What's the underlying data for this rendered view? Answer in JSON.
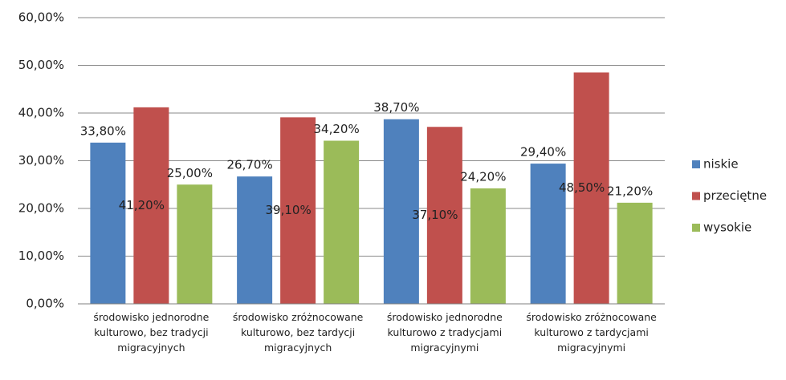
{
  "chart_data": {
    "type": "bar",
    "categories": [
      "środowisko jednorodne kulturowo, bez tradycji migracyjnych",
      "środowisko zróżnocowane kulturowo, bez tardycji migracyjnych",
      "środowisko jednorodne kulturowo z tradycjami migracyjnymi",
      "środowisko zróżnocowane kulturowo z tardycjami migracyjnymi"
    ],
    "series": [
      {
        "name": "niskie",
        "color": "#4f81bd",
        "values": [
          33.8,
          26.7,
          38.7,
          29.4
        ],
        "value_labels": [
          "33,80%",
          "26,70%",
          "38,70%",
          "29,40%"
        ]
      },
      {
        "name": "przeciętne",
        "color": "#c0504d",
        "values": [
          41.2,
          39.1,
          37.1,
          48.5
        ],
        "value_labels": [
          "41,20%",
          "39,10%",
          "37,10%",
          "48,50%"
        ]
      },
      {
        "name": "wysokie",
        "color": "#9bbb59",
        "values": [
          25.0,
          34.2,
          24.2,
          21.2
        ],
        "value_labels": [
          "25,00%",
          "34,20%",
          "24,20%",
          "21,20%"
        ]
      }
    ],
    "ylim": [
      0,
      60
    ],
    "yticks": [
      {
        "value": 0,
        "label": "0,00%"
      },
      {
        "value": 10,
        "label": "10,00%"
      },
      {
        "value": 20,
        "label": "20,00%"
      },
      {
        "value": 30,
        "label": "30,00%"
      },
      {
        "value": 40,
        "label": "40,00%"
      },
      {
        "value": 50,
        "label": "50,00%"
      },
      {
        "value": 60,
        "label": "60,00%"
      }
    ],
    "grid": true,
    "legend": "right"
  }
}
